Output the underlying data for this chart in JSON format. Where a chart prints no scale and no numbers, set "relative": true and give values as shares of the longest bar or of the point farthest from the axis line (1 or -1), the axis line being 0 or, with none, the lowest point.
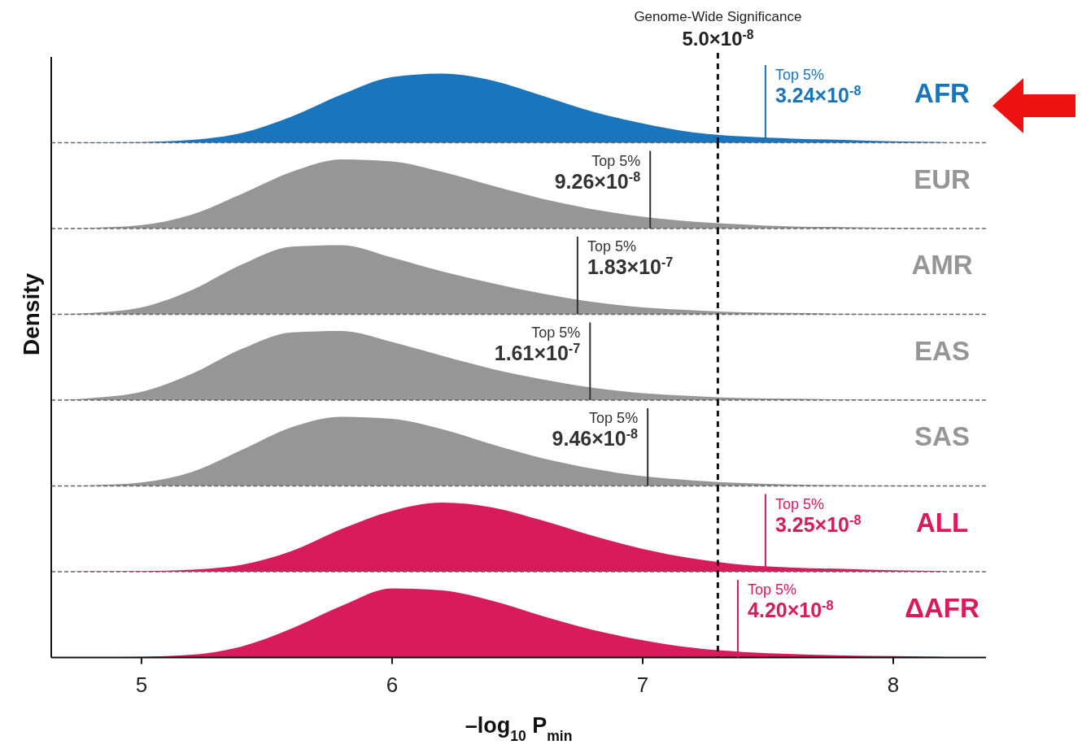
{
  "chart_data": [
    {
      "type": "area",
      "relative": true,
      "tick_labels": false,
      "xlim": [
        4.64,
        8.37
      ],
      "x": [
        4.7,
        4.8,
        5.0,
        5.2,
        5.4,
        5.6,
        5.8,
        6.0,
        6.2,
        6.4,
        6.6,
        6.8,
        7.0,
        7.2,
        7.4,
        7.6,
        7.8,
        8.0,
        8.2
      ],
      "series": [
        {
          "name": "AFR",
          "color": "#1a75bd",
          "values": [
            0,
            0.005,
            0.01,
            0.04,
            0.14,
            0.38,
            0.7,
            0.95,
            1.0,
            0.9,
            0.68,
            0.45,
            0.28,
            0.15,
            0.09,
            0.06,
            0.04,
            0.02,
            0.01
          ]
        }
      ],
      "ref_lines": [
        {
          "axis": "x",
          "value": 7.3,
          "label": "Genome-Wide Significance",
          "color": "#111111",
          "line_style": "dashed"
        },
        {
          "axis": "x",
          "value": 7.49,
          "label": "Top 5%",
          "color": "#1a75bd"
        }
      ],
      "annotations": [
        "5.0×10$^{-8}$",
        {
          "text": "3.24×10$^{-8}$",
          "x": 7.49
        }
      ]
    },
    {
      "type": "area",
      "relative": true,
      "tick_labels": false,
      "xlim": [
        4.64,
        8.37
      ],
      "x": [
        4.7,
        4.8,
        5.0,
        5.2,
        5.4,
        5.6,
        5.8,
        6.0,
        6.2,
        6.4,
        6.6,
        6.8,
        7.0,
        7.2,
        7.4,
        7.6,
        7.8,
        8.0,
        8.2
      ],
      "series": [
        {
          "name": "EUR",
          "color": "#969696",
          "values": [
            0,
            0.01,
            0.05,
            0.2,
            0.5,
            0.82,
            1.0,
            0.97,
            0.82,
            0.62,
            0.43,
            0.28,
            0.17,
            0.1,
            0.06,
            0.03,
            0.02,
            0.01,
            0.005
          ]
        }
      ],
      "ref_lines": [
        {
          "axis": "x",
          "value": 7.3,
          "color": "#111111",
          "line_style": "dashed"
        },
        {
          "axis": "x",
          "value": 7.03,
          "label": "Top 5%",
          "color": "#333333"
        }
      ],
      "annotations": [
        {
          "text": "9.26×10$^{-8}$",
          "x": 7.03
        }
      ]
    },
    {
      "type": "area",
      "relative": true,
      "tick_labels": false,
      "xlim": [
        4.64,
        8.37
      ],
      "x": [
        4.7,
        4.8,
        5.0,
        5.2,
        5.4,
        5.6,
        5.8,
        6.0,
        6.2,
        6.4,
        6.6,
        6.8,
        7.0,
        7.2,
        7.4,
        7.6,
        7.8,
        8.0,
        8.2
      ],
      "series": [
        {
          "name": "AMR",
          "color": "#969696",
          "values": [
            0.005,
            0.02,
            0.1,
            0.35,
            0.72,
            0.98,
            1.0,
            0.82,
            0.62,
            0.45,
            0.3,
            0.18,
            0.1,
            0.06,
            0.03,
            0.02,
            0.01,
            0.005,
            0
          ]
        }
      ],
      "ref_lines": [
        {
          "axis": "x",
          "value": 7.3,
          "color": "#111111",
          "line_style": "dashed"
        },
        {
          "axis": "x",
          "value": 6.74,
          "label": "Top 5%",
          "color": "#333333"
        }
      ],
      "annotations": [
        {
          "text": "1.83×10$^{-7}$",
          "x": 6.74
        }
      ]
    },
    {
      "type": "area",
      "relative": true,
      "tick_labels": false,
      "xlim": [
        4.64,
        8.37
      ],
      "ylabel": "Density",
      "x": [
        4.7,
        4.8,
        5.0,
        5.2,
        5.4,
        5.6,
        5.8,
        6.0,
        6.2,
        6.4,
        6.6,
        6.8,
        7.0,
        7.2,
        7.4,
        7.6,
        7.8,
        8.0,
        8.2
      ],
      "series": [
        {
          "name": "EAS",
          "color": "#969696",
          "values": [
            0.005,
            0.03,
            0.12,
            0.38,
            0.74,
            0.98,
            1.0,
            0.84,
            0.64,
            0.45,
            0.3,
            0.18,
            0.1,
            0.06,
            0.03,
            0.02,
            0.01,
            0.005,
            0
          ]
        }
      ],
      "ref_lines": [
        {
          "axis": "x",
          "value": 7.3,
          "color": "#111111",
          "line_style": "dashed"
        },
        {
          "axis": "x",
          "value": 6.79,
          "label": "Top 5%",
          "color": "#333333"
        }
      ],
      "annotations": [
        {
          "text": "1.61×10$^{-7}$",
          "x": 6.79
        }
      ]
    },
    {
      "type": "area",
      "relative": true,
      "tick_labels": false,
      "xlim": [
        4.64,
        8.37
      ],
      "x": [
        4.7,
        4.8,
        5.0,
        5.2,
        5.4,
        5.6,
        5.8,
        6.0,
        6.2,
        6.4,
        6.6,
        6.8,
        7.0,
        7.2,
        7.4,
        7.6,
        7.8,
        8.0,
        8.2
      ],
      "series": [
        {
          "name": "SAS",
          "color": "#969696",
          "values": [
            0,
            0.01,
            0.05,
            0.2,
            0.52,
            0.85,
            1.0,
            0.97,
            0.82,
            0.6,
            0.4,
            0.25,
            0.14,
            0.08,
            0.04,
            0.02,
            0.01,
            0.005,
            0
          ]
        }
      ],
      "ref_lines": [
        {
          "axis": "x",
          "value": 7.3,
          "color": "#111111",
          "line_style": "dashed"
        },
        {
          "axis": "x",
          "value": 7.02,
          "label": "Top 5%",
          "color": "#333333"
        }
      ],
      "annotations": [
        {
          "text": "9.46×10$^{-8}$",
          "x": 7.02
        }
      ]
    },
    {
      "type": "area",
      "relative": true,
      "tick_labels": false,
      "xlim": [
        4.64,
        8.37
      ],
      "x": [
        4.7,
        4.8,
        5.0,
        5.2,
        5.4,
        5.6,
        5.8,
        6.0,
        6.2,
        6.4,
        6.6,
        6.8,
        7.0,
        7.2,
        7.4,
        7.6,
        7.8,
        8.0,
        8.2
      ],
      "series": [
        {
          "name": "ALL",
          "color": "#d81b5a",
          "values": [
            0,
            0.005,
            0.01,
            0.03,
            0.1,
            0.3,
            0.62,
            0.88,
            1.0,
            0.93,
            0.74,
            0.52,
            0.33,
            0.19,
            0.1,
            0.06,
            0.04,
            0.02,
            0.01
          ]
        }
      ],
      "ref_lines": [
        {
          "axis": "x",
          "value": 7.3,
          "color": "#111111",
          "line_style": "dashed"
        },
        {
          "axis": "x",
          "value": 7.49,
          "label": "Top 5%",
          "color": "#d81b5a"
        }
      ],
      "annotations": [
        {
          "text": "3.25×10$^{-8}$",
          "x": 7.49
        }
      ]
    },
    {
      "type": "area",
      "relative": true,
      "tick_labels": "x",
      "xlim": [
        4.64,
        8.37
      ],
      "xticks": [
        5,
        6,
        7,
        8
      ],
      "xlabel": "–log$_{10}$ P$_{min}$",
      "x": [
        4.7,
        4.8,
        5.0,
        5.2,
        5.4,
        5.6,
        5.8,
        6.0,
        6.2,
        6.4,
        6.6,
        6.8,
        7.0,
        7.2,
        7.4,
        7.6,
        7.8,
        8.0,
        8.2
      ],
      "series": [
        {
          "name": "ΔAFR",
          "color": "#d81b5a",
          "values": [
            0,
            0.005,
            0.01,
            0.04,
            0.16,
            0.42,
            0.75,
            1.0,
            0.97,
            0.82,
            0.6,
            0.4,
            0.25,
            0.14,
            0.08,
            0.05,
            0.03,
            0.02,
            0.01
          ]
        }
      ],
      "ref_lines": [
        {
          "axis": "x",
          "value": 7.3,
          "color": "#111111",
          "line_style": "dashed"
        },
        {
          "axis": "x",
          "value": 7.38,
          "label": "Top 5%",
          "color": "#d81b5a"
        }
      ],
      "annotations": [
        {
          "text": "4.20×10$^{-8}$",
          "x": 7.38
        }
      ]
    }
  ]
}
